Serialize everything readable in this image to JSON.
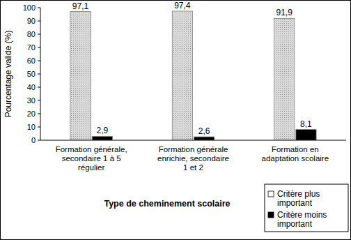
{
  "chart_data": {
    "type": "bar",
    "y_label": "Pourcentage valide (%)",
    "x_label": "Type de cheminement scolaire",
    "categories": [
      "Formation générale,\nsecondaire 1 à 5\nrégulier",
      "Formation générale\nenrichie, secondaire\n1 et 2",
      "Formation en\nadaptation scolaire"
    ],
    "series": [
      {
        "name": "Critère plus\nimportant",
        "color": "#d9d9d9",
        "values": [
          97.1,
          97.4,
          91.9
        ],
        "value_labels": [
          "97,1",
          "97,4",
          "91,9"
        ]
      },
      {
        "name": "Critère moins\nimportant",
        "color": "#000000",
        "values": [
          2.9,
          2.6,
          8.1
        ],
        "value_labels": [
          "2,9",
          "2,6",
          "8,1"
        ]
      }
    ],
    "ylim": [
      0,
      100
    ],
    "yticks": [
      0,
      10,
      20,
      30,
      40,
      50,
      60,
      70,
      80,
      90,
      100
    ],
    "grid": false,
    "legend": "bottom-right",
    "data_labels": true
  }
}
